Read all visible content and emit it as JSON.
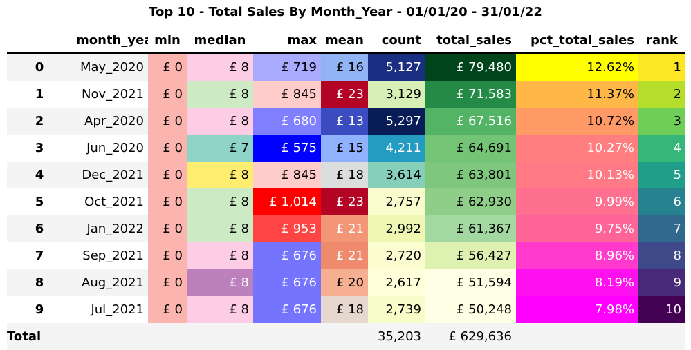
{
  "title": "Top 10 - Total Sales By Month_Year - 01/01/20 - 31/01/22",
  "chart_data": {
    "type": "table",
    "columns": [
      "",
      "month_year",
      "min",
      "median",
      "max",
      "mean",
      "count",
      "total_sales",
      "pct_total_sales",
      "rank"
    ],
    "rows": [
      {
        "index": "0",
        "month_year": "May_2020",
        "min": "£ 0",
        "median": "£ 8",
        "max": "£ 719",
        "mean": "£ 16",
        "count": "5,127",
        "total_sales": "£ 79,480",
        "pct_total_sales": "12.62%",
        "rank": "1"
      },
      {
        "index": "1",
        "month_year": "Nov_2021",
        "min": "£ 0",
        "median": "£ 8",
        "max": "£ 845",
        "mean": "£ 23",
        "count": "3,129",
        "total_sales": "£ 71,583",
        "pct_total_sales": "11.37%",
        "rank": "2"
      },
      {
        "index": "2",
        "month_year": "Apr_2020",
        "min": "£ 0",
        "median": "£ 8",
        "max": "£ 680",
        "mean": "£ 13",
        "count": "5,297",
        "total_sales": "£ 67,516",
        "pct_total_sales": "10.72%",
        "rank": "3"
      },
      {
        "index": "3",
        "month_year": "Jun_2020",
        "min": "£ 0",
        "median": "£ 7",
        "max": "£ 575",
        "mean": "£ 15",
        "count": "4,211",
        "total_sales": "£ 64,691",
        "pct_total_sales": "10.27%",
        "rank": "4"
      },
      {
        "index": "4",
        "month_year": "Dec_2021",
        "min": "£ 0",
        "median": "£ 8",
        "max": "£ 845",
        "mean": "£ 18",
        "count": "3,614",
        "total_sales": "£ 63,801",
        "pct_total_sales": "10.13%",
        "rank": "5"
      },
      {
        "index": "5",
        "month_year": "Oct_2021",
        "min": "£ 0",
        "median": "£ 8",
        "max": "£ 1,014",
        "mean": "£ 23",
        "count": "2,757",
        "total_sales": "£ 62,930",
        "pct_total_sales": "9.99%",
        "rank": "6"
      },
      {
        "index": "6",
        "month_year": "Jan_2022",
        "min": "£ 0",
        "median": "£ 8",
        "max": "£ 953",
        "mean": "£ 21",
        "count": "2,992",
        "total_sales": "£ 61,367",
        "pct_total_sales": "9.75%",
        "rank": "7"
      },
      {
        "index": "7",
        "month_year": "Sep_2021",
        "min": "£ 0",
        "median": "£ 8",
        "max": "£ 676",
        "mean": "£ 21",
        "count": "2,720",
        "total_sales": "£ 56,427",
        "pct_total_sales": "8.96%",
        "rank": "8"
      },
      {
        "index": "8",
        "month_year": "Aug_2021",
        "min": "£ 0",
        "median": "£ 8",
        "max": "£ 676",
        "mean": "£ 20",
        "count": "2,617",
        "total_sales": "£ 51,594",
        "pct_total_sales": "8.19%",
        "rank": "9"
      },
      {
        "index": "9",
        "month_year": "Jul_2021",
        "min": "£ 0",
        "median": "£ 8",
        "max": "£ 676",
        "mean": "£ 18",
        "count": "2,739",
        "total_sales": "£ 50,248",
        "pct_total_sales": "7.98%",
        "rank": "10"
      }
    ],
    "total": {
      "label": "Total",
      "count": "35,203",
      "total_sales": "£ 629,636"
    }
  },
  "cell_colors": {
    "min": [
      "#fbb4ae",
      "#fbb4ae",
      "#fbb4ae",
      "#fbb4ae",
      "#fbb4ae",
      "#fbb4ae",
      "#fbb4ae",
      "#fbb4ae",
      "#fbb4ae",
      "#fbb4ae"
    ],
    "median": [
      "#fccde5",
      "#ccebc5",
      "#fccde5",
      "#8dd3c7",
      "#ffed6f",
      "#ccebc5",
      "#ccebc5",
      "#fccde5",
      "#bc80bd",
      "#fccde5"
    ],
    "max": [
      "#aaaaff",
      "#ffcccc",
      "#7f7fff",
      "#0000ff",
      "#ffcccc",
      "#ff0000",
      "#ff4444",
      "#7474ff",
      "#7474ff",
      "#7474ff"
    ],
    "mean": [
      "#92b4f4",
      "#b40426",
      "#3b4cc0",
      "#90b2fe",
      "#dcdddd",
      "#b40426",
      "#f39577",
      "#f08a6c",
      "#f7af91",
      "#e6d7cf"
    ],
    "count": [
      "#1a2f82",
      "#d8efb6",
      "#081d58",
      "#249bc1",
      "#86d0bb",
      "#f9fdce",
      "#eef8b3",
      "#fbfdd0",
      "#ffffd9",
      "#f7fcc8"
    ],
    "total_sales": [
      "#00441b",
      "#238b45",
      "#53b466",
      "#74c476",
      "#7dc87c",
      "#8ece88",
      "#a3d9a1",
      "#ddf1b0",
      "#ffffe5",
      "#ffffe5"
    ],
    "pct_total_sales": [
      "#ffff00",
      "#ffb847",
      "#ff9966",
      "#ff7f80",
      "#ff7a85",
      "#ff6f90",
      "#ff6498",
      "#ff3acc",
      "#ff10ef",
      "#ff00ff"
    ],
    "rank": [
      "#fde725",
      "#b5de2b",
      "#6ece58",
      "#35b779",
      "#1f9e89",
      "#26828e",
      "#31688e",
      "#3e4989",
      "#482878",
      "#440154"
    ]
  },
  "light_text_cells": {
    "max": [
      false,
      false,
      true,
      true,
      false,
      true,
      true,
      true,
      true,
      true
    ],
    "mean": [
      false,
      true,
      true,
      false,
      false,
      true,
      true,
      true,
      false,
      false
    ],
    "median": [
      false,
      false,
      false,
      false,
      false,
      false,
      false,
      false,
      true,
      false
    ],
    "count": [
      true,
      false,
      true,
      true,
      false,
      false,
      false,
      false,
      false,
      false
    ],
    "total_sales": [
      true,
      true,
      true,
      false,
      false,
      false,
      false,
      false,
      false,
      false
    ],
    "pct_total_sales": [
      false,
      false,
      false,
      true,
      true,
      true,
      true,
      true,
      true,
      true
    ],
    "rank": [
      false,
      false,
      false,
      true,
      true,
      true,
      true,
      true,
      true,
      true
    ]
  },
  "stripe_color": "#f4f4f4"
}
